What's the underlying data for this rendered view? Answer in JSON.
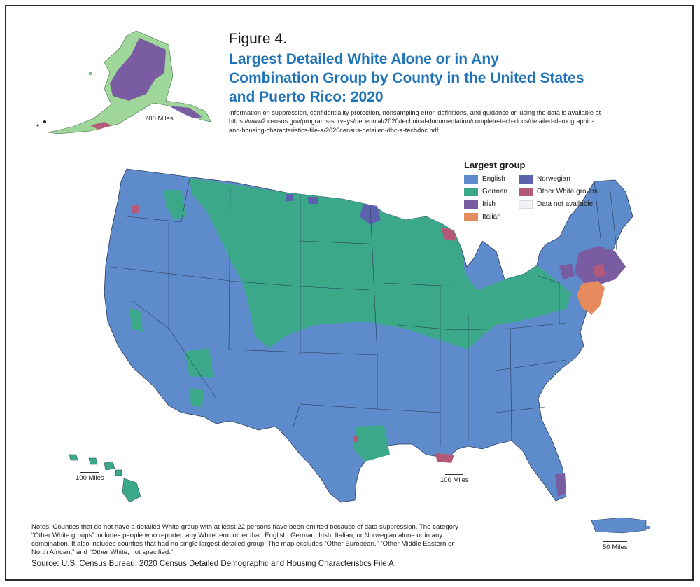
{
  "figure": {
    "label": "Figure 4.",
    "title_lines": [
      "Largest Detailed White Alone or in Any",
      "Combination Group by County in the United States",
      "and Puerto Rico: 2020"
    ],
    "info_lines": [
      "Information on suppression, confidentiality protection, nonsampling error, definitions, and guidance on using the data is available at",
      "https://www2.census.gov/programs-surveys/decennial/2020/technical-documentation/complete-tech-docs/detailed-demographic-",
      "and-housing-characteristics-file-a/2020census-detailed-dhc-a-techdoc.pdf."
    ]
  },
  "legend": {
    "title": "Largest group",
    "items": [
      {
        "label": "English",
        "color": "#5e8bcb"
      },
      {
        "label": "Norwegian",
        "color": "#5b62ad"
      },
      {
        "label": "German",
        "color": "#3aa889"
      },
      {
        "label": "Other White groups",
        "color": "#b45a78"
      },
      {
        "label": "Irish",
        "color": "#7a5ca3"
      },
      {
        "label": "Data not available",
        "color": "#f2f2f5"
      },
      {
        "label": "Italian",
        "color": "#e58b5e"
      }
    ]
  },
  "scales": {
    "alaska": "200 Miles",
    "hawaii": "100 Miles",
    "conus": "100 Miles",
    "puerto_rico": "50 Miles"
  },
  "notes_lines": [
    "Notes: Counties that do not have a detailed White group with at least 22 persons have been omitted because of data suppression. The category",
    "“Other White groups” includes people who reported any White term other than English, German, Irish, Italian, or Norwegian alone or in any",
    "combination. It also includes counties that had no single largest detailed group. The map excludes “Other European,” “Other Middle Eastern or",
    "North African,” and “Other White, not specified.”"
  ],
  "source": "Source: U.S. Census Bureau, 2020 Census Detailed Demographic and Housing Characteristics File A.",
  "colors": {
    "english": "#5e8bcb",
    "german": "#3aa889",
    "irish": "#7a5ca3",
    "italian": "#e58b5e",
    "norwegian": "#5b62ad",
    "other": "#b45a78",
    "alaska_fill": "#9fd79a",
    "title": "#1f74b9"
  }
}
